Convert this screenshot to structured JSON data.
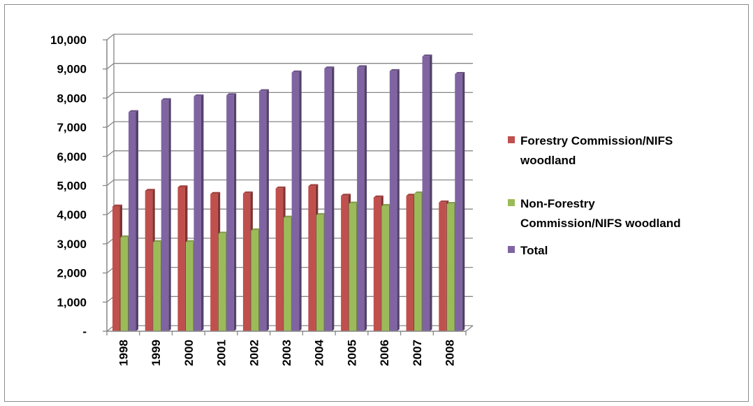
{
  "chart_data": {
    "type": "bar",
    "categories": [
      "1998",
      "1999",
      "2000",
      "2001",
      "2002",
      "2003",
      "2004",
      "2005",
      "2006",
      "2007",
      "2008"
    ],
    "series": [
      {
        "name": "Forestry Commission/NIFS woodland",
        "legend_lines": [
          "Forestry Commission/NIFS",
          "woodland"
        ],
        "color": "#c0504d",
        "values": [
          4280,
          4820,
          4940,
          4710,
          4730,
          4900,
          4980,
          4650,
          4590,
          4650,
          4420
        ]
      },
      {
        "name": "Non-Forestry Commission/NIFS woodland",
        "legend_lines": [
          "Non-Forestry",
          "Commission/NIFS woodland"
        ],
        "color": "#9bbb59",
        "values": [
          3220,
          3060,
          3060,
          3350,
          3460,
          3900,
          3990,
          4380,
          4300,
          4730,
          4370
        ]
      },
      {
        "name": "Total",
        "legend_lines": [
          "Total"
        ],
        "color": "#8064a2",
        "values": [
          7520,
          7930,
          8060,
          8100,
          8240,
          8880,
          9020,
          9060,
          8930,
          9430,
          8830
        ]
      }
    ],
    "y_tick_labels": [
      "-",
      "1,000",
      "2,000",
      "3,000",
      "4,000",
      "5,000",
      "6,000",
      "7,000",
      "8,000",
      "9,000",
      "10,000"
    ],
    "ylim": [
      0,
      10000
    ],
    "grid": true,
    "legend_position": "right"
  }
}
